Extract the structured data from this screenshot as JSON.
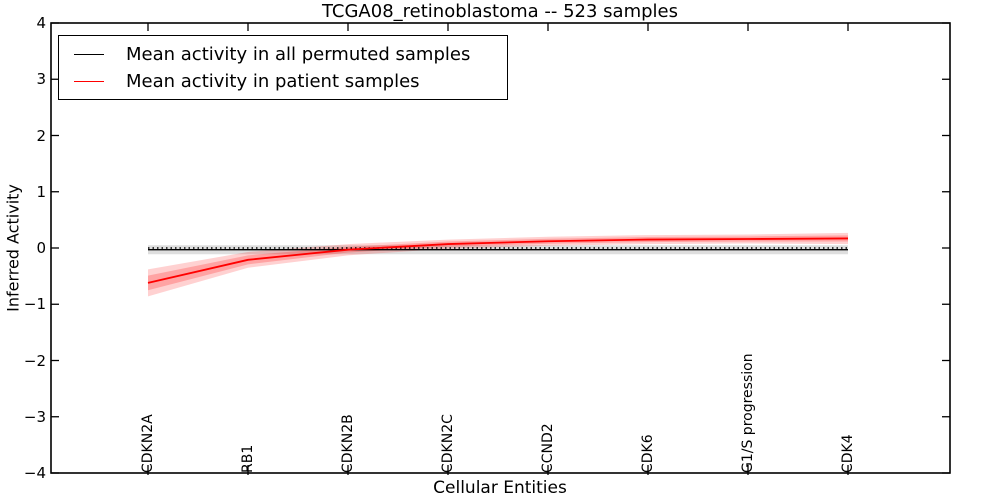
{
  "title": "TCGA08_retinoblastoma -- 523 samples",
  "axes": {
    "xlabel": "Cellular Entities",
    "ylabel": "Inferred Activity",
    "ytick_labels": [
      "4",
      "3",
      "2",
      "1",
      "0",
      "−1",
      "−2",
      "−3",
      "−4"
    ],
    "ylim": [
      -4,
      4
    ],
    "frame_color": "#000000"
  },
  "legend": {
    "items": [
      {
        "label": "Mean activity in all permuted samples",
        "color": "#000000"
      },
      {
        "label": "Mean activity in patient samples",
        "color": "#ff0000"
      }
    ]
  },
  "chart_data": {
    "type": "line",
    "title": "TCGA08_retinoblastoma -- 523 samples",
    "xlabel": "Cellular Entities",
    "ylabel": "Inferred Activity",
    "ylim": [
      -4,
      4
    ],
    "grid": false,
    "legend_position": "upper left",
    "categories": [
      "CDKN2A",
      "RB1",
      "CDKN2B",
      "CDKN2C",
      "CCND2",
      "CDK6",
      "G1/S progression",
      "CDK4"
    ],
    "series": [
      {
        "name": "Mean activity in all permuted samples",
        "color": "#000000",
        "line_width": 1.3,
        "values": [
          -0.03,
          -0.03,
          -0.03,
          -0.03,
          -0.03,
          -0.03,
          -0.03,
          -0.03
        ],
        "band_halfwidth": [
          0.08,
          0.08,
          0.08,
          0.08,
          0.08,
          0.08,
          0.08,
          0.08
        ],
        "band_color": "rgba(0,0,0,0.13)"
      },
      {
        "name": "Mean activity in patient samples",
        "color": "#ff0000",
        "line_width": 1.8,
        "values": [
          -0.62,
          -0.21,
          -0.03,
          0.07,
          0.12,
          0.15,
          0.16,
          0.17
        ],
        "band_halfwidth": [
          0.24,
          0.14,
          0.1,
          0.08,
          0.08,
          0.08,
          0.08,
          0.1
        ],
        "band_inner_halfwidth": [
          0.13,
          0.08,
          0.05,
          0.045,
          0.045,
          0.045,
          0.045,
          0.055
        ],
        "band_color": "rgba(255,0,0,0.18)",
        "band_inner_color": "rgba(255,0,0,0.22)"
      }
    ],
    "zero_line": {
      "value": 0,
      "style": "dotted",
      "color": "#000000"
    }
  }
}
